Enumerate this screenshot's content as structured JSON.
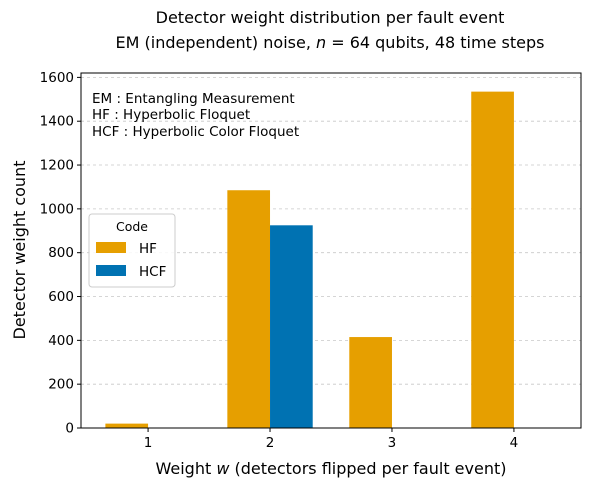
{
  "chart_data": {
    "type": "bar",
    "title_line1": "Detector weight distribution per fault event",
    "title_line2_prefix": "EM (independent) noise, ",
    "title_n_symbol": "n",
    "title_line2_mid": " = 64 qubits, 48 time steps",
    "xlabel_prefix": "Weight ",
    "xlabel_var": "w",
    "xlabel_suffix": " (detectors flipped per fault event)",
    "ylabel": "Detector weight count",
    "categories": [
      "1",
      "2",
      "3",
      "4"
    ],
    "x": [
      1,
      2,
      3,
      4
    ],
    "series": [
      {
        "name": "HF",
        "color": "#E69F00",
        "values": [
          20,
          1085,
          415,
          1535
        ]
      },
      {
        "name": "HCF",
        "color": "#0072B2",
        "values": [
          0,
          925,
          0,
          0
        ]
      }
    ],
    "ylim": [
      0,
      1620
    ],
    "yticks": [
      0,
      200,
      400,
      600,
      800,
      1000,
      1200,
      1400,
      1600
    ],
    "grid": "y, dashed",
    "legend": {
      "title": "Code",
      "placement": "center-left"
    },
    "annotations": [
      "EM : Entangling Measurement",
      "HF : Hyperbolic Floquet",
      "HCF : Hyperbolic Color Floquet"
    ]
  }
}
